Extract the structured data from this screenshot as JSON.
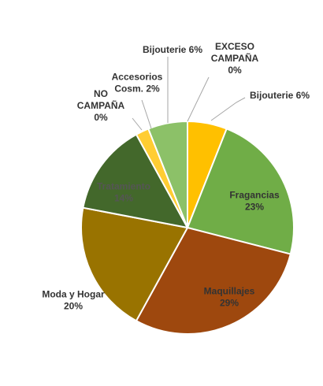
{
  "chart_data": {
    "type": "pie",
    "title": "",
    "slices": [
      {
        "label": "Bijouterie",
        "value": 6,
        "pct_label": "6%",
        "color": "#FFC000",
        "label_color": "#333333"
      },
      {
        "label": "Fragancias",
        "value": 23,
        "pct_label": "23%",
        "color": "#70AD47",
        "label_color": "#333333"
      },
      {
        "label": "Maquillajes",
        "value": 29,
        "pct_label": "29%",
        "color": "#9E480E",
        "label_color": "#333333"
      },
      {
        "label": "Moda y Hogar",
        "value": 20,
        "pct_label": "20%",
        "color": "#997300",
        "label_color": "#333333"
      },
      {
        "label": "Tratamiento",
        "value": 14,
        "pct_label": "14%",
        "color": "#43682B",
        "label_color": "#555555"
      },
      {
        "label": "NO CAMPAÑA",
        "value": 0,
        "pct_label": "0%",
        "color": "#C00000",
        "label_color": "#333333"
      },
      {
        "label": "Accesorios Cosm.",
        "value": 2,
        "pct_label": "2%",
        "color": "#FFCD33",
        "label_color": "#333333"
      },
      {
        "label": "Bijouterie",
        "value": 6,
        "pct_label": "6%",
        "color": "#8CC168",
        "label_color": "#333333"
      },
      {
        "label": "EXCESO CAMPAÑA",
        "value": 0,
        "pct_label": "0%",
        "color": "#7F7F7F",
        "label_color": "#333333"
      }
    ],
    "legend": "none"
  }
}
